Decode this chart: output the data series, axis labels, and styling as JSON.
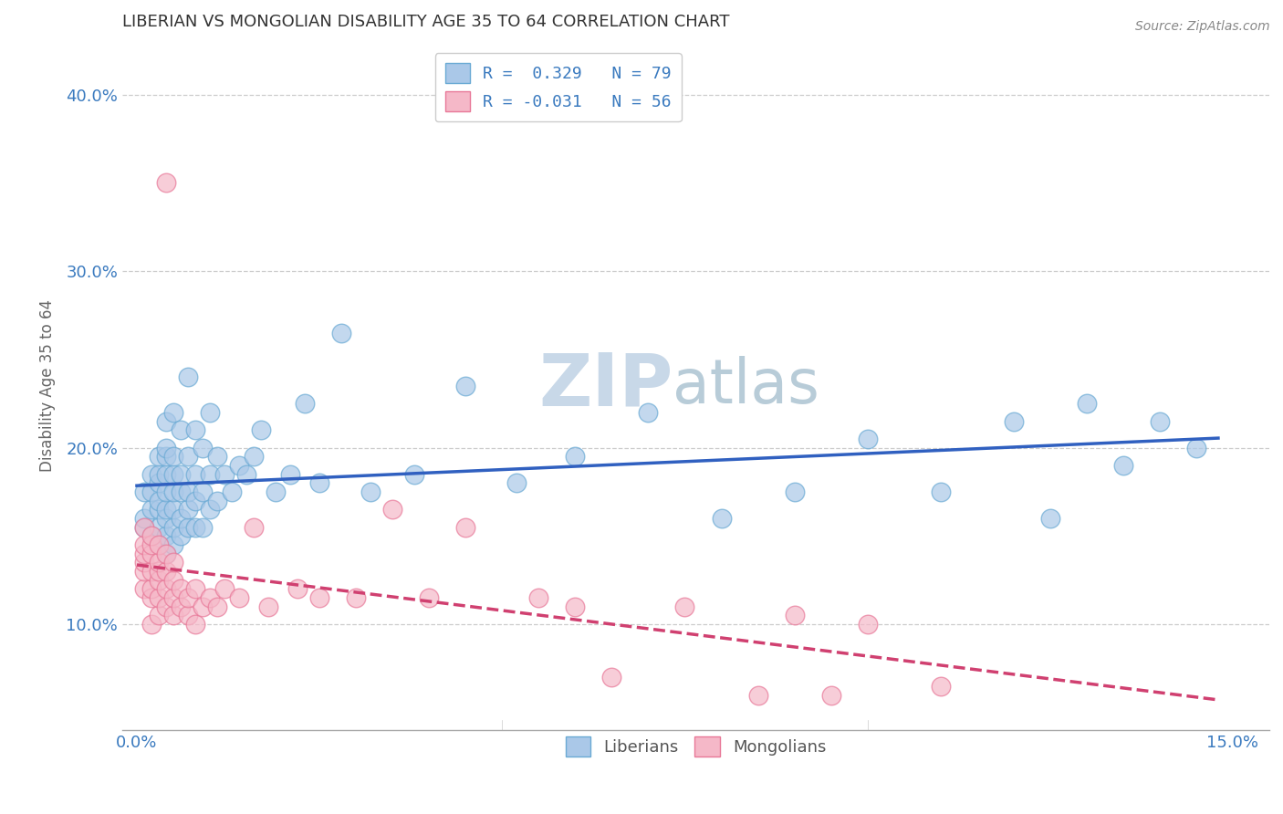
{
  "title": "LIBERIAN VS MONGOLIAN DISABILITY AGE 35 TO 64 CORRELATION CHART",
  "source_text": "Source: ZipAtlas.com",
  "xlabel": "",
  "ylabel": "Disability Age 35 to 64",
  "xlim": [
    -0.002,
    0.155
  ],
  "ylim": [
    0.04,
    0.43
  ],
  "xticks": [
    0.0,
    0.15
  ],
  "xticklabels": [
    "0.0%",
    "15.0%"
  ],
  "yticks": [
    0.1,
    0.2,
    0.3,
    0.4
  ],
  "yticklabels": [
    "10.0%",
    "20.0%",
    "30.0%",
    "40.0%"
  ],
  "legend_r1": "R =  0.329   N = 79",
  "legend_r2": "R = -0.031   N = 56",
  "color_liberian": "#aac8e8",
  "color_mongolian": "#f5b8c8",
  "edge_liberian": "#6aaad4",
  "edge_mongolian": "#e87898",
  "trendline_liberian": "#3060c0",
  "trendline_mongolian": "#d04070",
  "watermark_color": "#c8d8e8",
  "watermark_text": "ZIPatlas",
  "liberian_x": [
    0.001,
    0.001,
    0.001,
    0.002,
    0.002,
    0.002,
    0.002,
    0.003,
    0.003,
    0.003,
    0.003,
    0.003,
    0.003,
    0.003,
    0.004,
    0.004,
    0.004,
    0.004,
    0.004,
    0.004,
    0.004,
    0.004,
    0.004,
    0.005,
    0.005,
    0.005,
    0.005,
    0.005,
    0.005,
    0.005,
    0.006,
    0.006,
    0.006,
    0.006,
    0.006,
    0.007,
    0.007,
    0.007,
    0.007,
    0.007,
    0.008,
    0.008,
    0.008,
    0.008,
    0.009,
    0.009,
    0.009,
    0.01,
    0.01,
    0.01,
    0.011,
    0.011,
    0.012,
    0.013,
    0.014,
    0.015,
    0.016,
    0.017,
    0.019,
    0.021,
    0.023,
    0.025,
    0.028,
    0.032,
    0.038,
    0.045,
    0.052,
    0.06,
    0.07,
    0.08,
    0.09,
    0.1,
    0.11,
    0.12,
    0.125,
    0.13,
    0.135,
    0.14,
    0.145
  ],
  "liberian_y": [
    0.155,
    0.16,
    0.175,
    0.15,
    0.165,
    0.175,
    0.185,
    0.145,
    0.155,
    0.165,
    0.17,
    0.18,
    0.185,
    0.195,
    0.14,
    0.15,
    0.16,
    0.165,
    0.175,
    0.185,
    0.195,
    0.2,
    0.215,
    0.145,
    0.155,
    0.165,
    0.175,
    0.185,
    0.195,
    0.22,
    0.15,
    0.16,
    0.175,
    0.185,
    0.21,
    0.155,
    0.165,
    0.175,
    0.195,
    0.24,
    0.155,
    0.17,
    0.185,
    0.21,
    0.155,
    0.175,
    0.2,
    0.165,
    0.185,
    0.22,
    0.17,
    0.195,
    0.185,
    0.175,
    0.19,
    0.185,
    0.195,
    0.21,
    0.175,
    0.185,
    0.225,
    0.18,
    0.265,
    0.175,
    0.185,
    0.235,
    0.18,
    0.195,
    0.22,
    0.16,
    0.175,
    0.205,
    0.175,
    0.215,
    0.16,
    0.225,
    0.19,
    0.215,
    0.2
  ],
  "mongolian_x": [
    0.001,
    0.001,
    0.001,
    0.001,
    0.001,
    0.001,
    0.002,
    0.002,
    0.002,
    0.002,
    0.002,
    0.002,
    0.002,
    0.003,
    0.003,
    0.003,
    0.003,
    0.003,
    0.003,
    0.004,
    0.004,
    0.004,
    0.004,
    0.004,
    0.005,
    0.005,
    0.005,
    0.005,
    0.006,
    0.006,
    0.007,
    0.007,
    0.008,
    0.008,
    0.009,
    0.01,
    0.011,
    0.012,
    0.014,
    0.016,
    0.018,
    0.022,
    0.025,
    0.03,
    0.035,
    0.04,
    0.045,
    0.055,
    0.06,
    0.065,
    0.075,
    0.085,
    0.09,
    0.095,
    0.1,
    0.11
  ],
  "mongolian_y": [
    0.12,
    0.13,
    0.135,
    0.14,
    0.145,
    0.155,
    0.1,
    0.115,
    0.12,
    0.13,
    0.14,
    0.145,
    0.15,
    0.105,
    0.115,
    0.125,
    0.13,
    0.135,
    0.145,
    0.11,
    0.12,
    0.13,
    0.14,
    0.35,
    0.105,
    0.115,
    0.125,
    0.135,
    0.11,
    0.12,
    0.105,
    0.115,
    0.1,
    0.12,
    0.11,
    0.115,
    0.11,
    0.12,
    0.115,
    0.155,
    0.11,
    0.12,
    0.115,
    0.115,
    0.165,
    0.115,
    0.155,
    0.115,
    0.11,
    0.07,
    0.11,
    0.06,
    0.105,
    0.06,
    0.1,
    0.065
  ]
}
